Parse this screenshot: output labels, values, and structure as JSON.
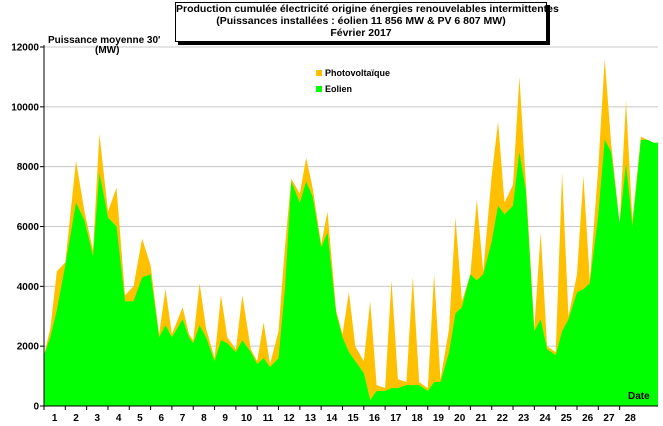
{
  "chart_data": {
    "type": "area",
    "title_lines": [
      "Production cumulée électricité origine énergies renouvelables intermittentes",
      "(Puissances installées : éolien 11 856 MW & PV 6 807 MW)",
      "Février  2017"
    ],
    "ylabel_line1": "Puissance moyenne 30'",
    "ylabel_line2": "(MW)",
    "xlabel": "Date",
    "ylim": [
      0,
      12000
    ],
    "yticks": [
      0,
      2000,
      4000,
      6000,
      8000,
      10000,
      12000
    ],
    "ytick_labels": [
      "0",
      "2000",
      "4000",
      "6000",
      "8000",
      "10000",
      "12000"
    ],
    "xlim": [
      1,
      29.8
    ],
    "xticks": [
      "1",
      "2",
      "3",
      "4",
      "5",
      "6",
      "7",
      "8",
      "9",
      "10",
      "11",
      "12",
      "13",
      "14",
      "15",
      "16",
      "17",
      "18",
      "19",
      "20",
      "21",
      "22",
      "23",
      "24",
      "25",
      "26",
      "27",
      "28"
    ],
    "grid": true,
    "legend_position": "top-center",
    "series": [
      {
        "name": "Photovoltaïque",
        "color": "#ffc000",
        "stacked_on": "Eolien",
        "x": [
          1.0,
          1.3,
          1.6,
          2.0,
          2.5,
          2.9,
          3.3,
          3.6,
          4.0,
          4.4,
          4.8,
          5.2,
          5.6,
          6.0,
          6.4,
          6.7,
          7.0,
          7.5,
          7.8,
          8.0,
          8.3,
          8.6,
          9.0,
          9.3,
          9.6,
          10.0,
          10.3,
          10.7,
          11.0,
          11.3,
          11.6,
          12.0,
          12.3,
          12.6,
          13.0,
          13.3,
          13.6,
          14.0,
          14.3,
          14.7,
          15.0,
          15.3,
          15.6,
          16.0,
          16.3,
          16.6,
          17.0,
          17.3,
          17.6,
          18.0,
          18.3,
          18.6,
          19.0,
          19.3,
          19.6,
          20.0,
          20.3,
          20.6,
          21.0,
          21.3,
          21.6,
          22.0,
          22.3,
          22.6,
          23.0,
          23.3,
          23.6,
          24.0,
          24.3,
          24.6,
          25.0,
          25.3,
          25.6,
          26.0,
          26.3,
          26.6,
          27.0,
          27.3,
          27.6,
          28.0,
          28.3,
          28.6,
          29.0,
          29.3,
          29.6,
          29.8
        ],
        "values": [
          1700,
          2600,
          4500,
          4800,
          8200,
          6500,
          5200,
          9100,
          6500,
          7300,
          3700,
          4000,
          5600,
          4700,
          2400,
          3900,
          2400,
          3300,
          2400,
          2200,
          4100,
          2600,
          1600,
          3700,
          2300,
          1900,
          3700,
          1900,
          1500,
          2800,
          1400,
          2500,
          5300,
          7600,
          7100,
          8300,
          7300,
          5400,
          6500,
          3200,
          2400,
          3800,
          2000,
          1500,
          3500,
          700,
          600,
          4200,
          900,
          800,
          4300,
          800,
          600,
          4400,
          900,
          2600,
          6300,
          3500,
          4400,
          6900,
          4500,
          7700,
          9500,
          6800,
          7400,
          11000,
          7500,
          2600,
          5800,
          2000,
          1800,
          7800,
          3000,
          4400,
          7700,
          4200,
          8000,
          11600,
          8800,
          6100,
          10200,
          6200,
          9000,
          8900,
          8800,
          8800
        ]
      },
      {
        "name": "Eolien",
        "color": "#00ff00",
        "x": [
          1.0,
          1.3,
          1.6,
          2.0,
          2.5,
          2.9,
          3.3,
          3.6,
          4.0,
          4.4,
          4.8,
          5.2,
          5.6,
          6.0,
          6.4,
          6.7,
          7.0,
          7.5,
          7.8,
          8.0,
          8.3,
          8.6,
          9.0,
          9.3,
          9.6,
          10.0,
          10.3,
          10.7,
          11.0,
          11.3,
          11.6,
          12.0,
          12.3,
          12.6,
          13.0,
          13.3,
          13.6,
          14.0,
          14.3,
          14.7,
          15.0,
          15.3,
          15.6,
          16.0,
          16.3,
          16.6,
          17.0,
          17.3,
          17.6,
          18.0,
          18.3,
          18.6,
          19.0,
          19.3,
          19.6,
          20.0,
          20.3,
          20.6,
          21.0,
          21.3,
          21.6,
          22.0,
          22.3,
          22.6,
          23.0,
          23.3,
          23.6,
          24.0,
          24.3,
          24.6,
          25.0,
          25.3,
          25.6,
          26.0,
          26.3,
          26.6,
          27.0,
          27.3,
          27.6,
          28.0,
          28.3,
          28.6,
          29.0,
          29.3,
          29.6,
          29.8
        ],
        "values": [
          1700,
          2300,
          3200,
          4700,
          6800,
          6200,
          5000,
          7800,
          6300,
          6000,
          3500,
          3500,
          4300,
          4400,
          2300,
          2700,
          2300,
          2900,
          2300,
          2100,
          2700,
          2300,
          1500,
          2200,
          2100,
          1800,
          2200,
          1800,
          1400,
          1600,
          1300,
          1600,
          3900,
          7500,
          6800,
          7500,
          7000,
          5300,
          5800,
          3100,
          2300,
          1800,
          1500,
          1100,
          200,
          500,
          500,
          600,
          600,
          700,
          700,
          700,
          500,
          800,
          800,
          1800,
          3100,
          3300,
          4400,
          4200,
          4400,
          5500,
          6700,
          6400,
          6700,
          8500,
          7200,
          2500,
          2900,
          1900,
          1700,
          2500,
          2900,
          3800,
          3900,
          4100,
          6400,
          8900,
          8500,
          6100,
          8100,
          6000,
          8900,
          8900,
          8800,
          8800
        ]
      }
    ]
  }
}
